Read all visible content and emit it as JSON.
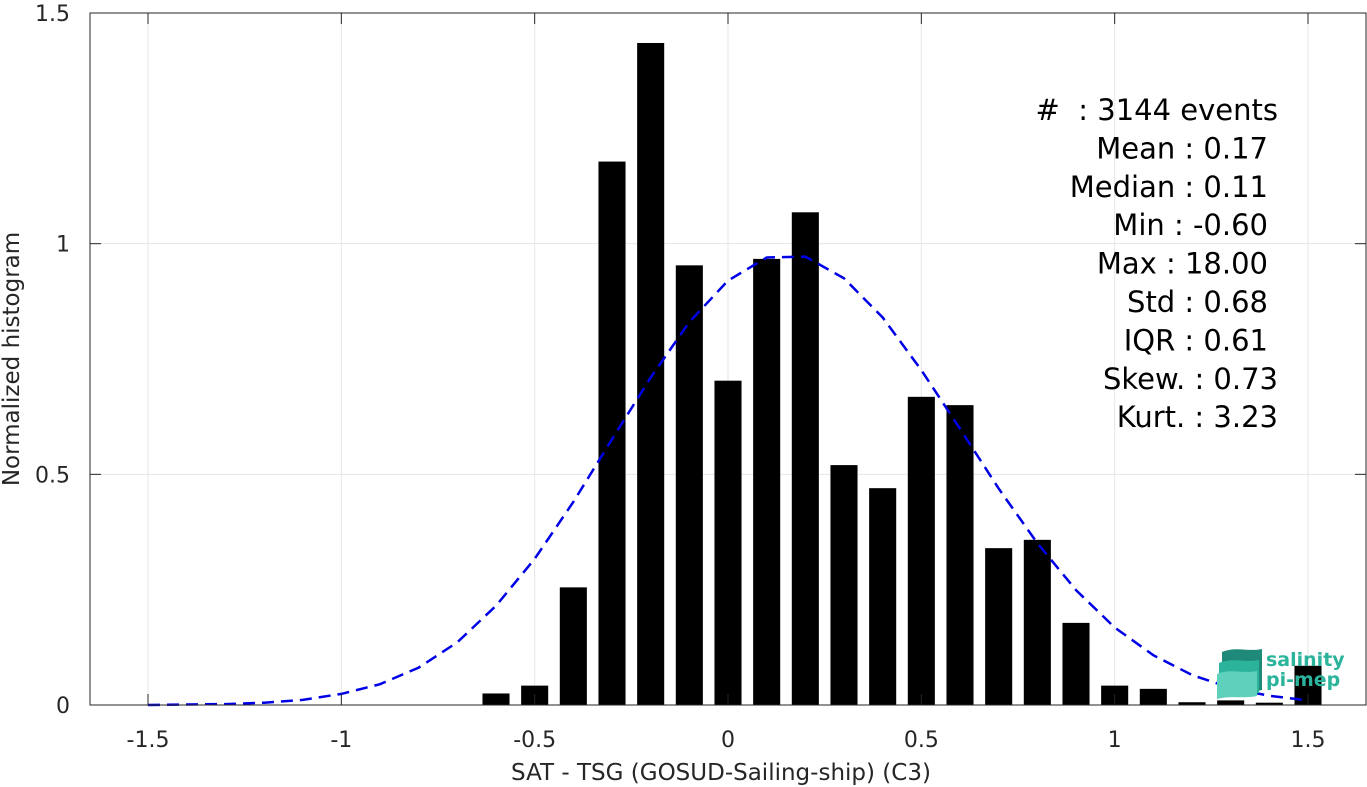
{
  "chart_data": {
    "type": "bar",
    "xlabel": "SAT - TSG (GOSUD-Sailing-ship) (C3)",
    "ylabel": "Normalized histogram",
    "xlim": [
      -1.65,
      1.65
    ],
    "ylim": [
      0,
      1.5
    ],
    "xticks": [
      -1.5,
      -1,
      -0.5,
      0,
      0.5,
      1,
      1.5
    ],
    "xtick_labels": [
      "-1.5",
      "-1",
      "-0.5",
      "0",
      "0.5",
      "1",
      "1.5"
    ],
    "yticks": [
      0,
      0.5,
      1,
      1.5
    ],
    "ytick_labels": [
      "0",
      "0.5",
      "1",
      "1.5"
    ],
    "grid": true,
    "bar_width": 0.07,
    "bar_color": "#000000",
    "bars": {
      "x": [
        -0.6,
        -0.5,
        -0.4,
        -0.3,
        -0.2,
        -0.1,
        0.0,
        0.1,
        0.2,
        0.3,
        0.4,
        0.5,
        0.6,
        0.7,
        0.8,
        0.9,
        1.0,
        1.1,
        1.2,
        1.3,
        1.4,
        1.5
      ],
      "values": [
        0.025,
        0.042,
        0.255,
        1.178,
        1.435,
        0.953,
        0.703,
        0.967,
        1.068,
        0.52,
        0.47,
        0.668,
        0.65,
        0.34,
        0.358,
        0.178,
        0.042,
        0.035,
        0.006,
        0.01,
        0.005,
        0.085
      ]
    },
    "fit_curve": {
      "style": "dashed",
      "color": "#0000e6",
      "x": [
        -1.5,
        -1.4,
        -1.3,
        -1.2,
        -1.1,
        -1.0,
        -0.9,
        -0.8,
        -0.7,
        -0.6,
        -0.5,
        -0.4,
        -0.3,
        -0.2,
        -0.1,
        0.0,
        0.1,
        0.2,
        0.3,
        0.4,
        0.5,
        0.6,
        0.7,
        0.8,
        0.9,
        1.0,
        1.1,
        1.2,
        1.3,
        1.4,
        1.5
      ],
      "y": [
        0.0,
        0.001,
        0.002,
        0.005,
        0.011,
        0.024,
        0.045,
        0.081,
        0.136,
        0.215,
        0.317,
        0.44,
        0.576,
        0.71,
        0.83,
        0.92,
        0.97,
        0.972,
        0.925,
        0.84,
        0.726,
        0.599,
        0.469,
        0.351,
        0.249,
        0.168,
        0.108,
        0.065,
        0.037,
        0.02,
        0.01
      ]
    },
    "stats": [
      "#  : 3144 events",
      "Mean : 0.17",
      "Median : 0.11",
      "Min : -0.60",
      "Max : 18.00",
      "Std : 0.68",
      "IQR : 0.61",
      "Skew. : 0.73",
      "Kurt. : 3.23"
    ]
  },
  "logo": {
    "line1": "salinity",
    "line2": "pi-mep",
    "color": "#2bb39b"
  }
}
